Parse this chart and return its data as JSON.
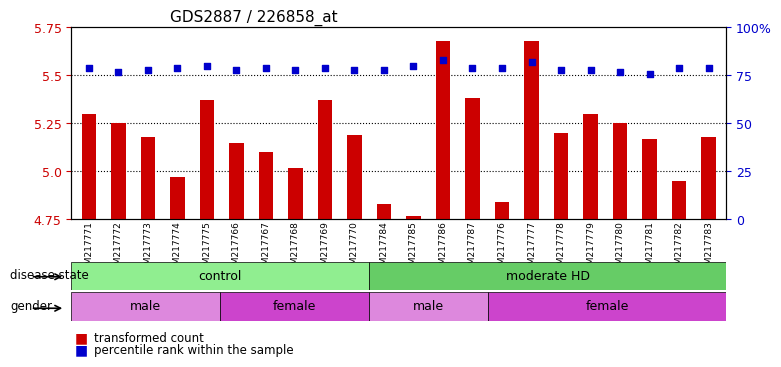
{
  "title": "GDS2887 / 226858_at",
  "samples": [
    "GSM217771",
    "GSM217772",
    "GSM217773",
    "GSM217774",
    "GSM217775",
    "GSM217766",
    "GSM217767",
    "GSM217768",
    "GSM217769",
    "GSM217770",
    "GSM217784",
    "GSM217785",
    "GSM217786",
    "GSM217787",
    "GSM217776",
    "GSM217777",
    "GSM217778",
    "GSM217779",
    "GSM217780",
    "GSM217781",
    "GSM217782",
    "GSM217783"
  ],
  "red_values": [
    5.3,
    5.25,
    5.18,
    4.97,
    5.37,
    5.15,
    5.1,
    5.02,
    5.37,
    5.19,
    4.83,
    4.77,
    5.68,
    5.38,
    4.84,
    5.68,
    5.2,
    5.3,
    5.25,
    5.17,
    4.95,
    5.18
  ],
  "blue_values": [
    79,
    77,
    78,
    79,
    80,
    78,
    79,
    78,
    79,
    78,
    78,
    80,
    83,
    79,
    79,
    82,
    78,
    78,
    77,
    76,
    79,
    79
  ],
  "ylim_left": [
    4.75,
    5.75
  ],
  "ylim_right": [
    0,
    100
  ],
  "yticks_left": [
    4.75,
    5.0,
    5.25,
    5.5,
    5.75
  ],
  "yticks_right": [
    0,
    25,
    50,
    75,
    100
  ],
  "hlines": [
    5.0,
    5.25,
    5.5
  ],
  "bar_color": "#cc0000",
  "dot_color": "#0000cc",
  "disease_state_groups": [
    {
      "label": "control",
      "start": 0,
      "end": 10,
      "color": "#90ee90"
    },
    {
      "label": "moderate HD",
      "start": 10,
      "end": 22,
      "color": "#66cc66"
    }
  ],
  "gender_groups": [
    {
      "label": "male",
      "start": 0,
      "end": 5,
      "color": "#dd88dd"
    },
    {
      "label": "female",
      "start": 5,
      "end": 10,
      "color": "#cc44cc"
    },
    {
      "label": "male",
      "start": 10,
      "end": 14,
      "color": "#dd88dd"
    },
    {
      "label": "female",
      "start": 14,
      "end": 22,
      "color": "#cc44cc"
    }
  ],
  "legend_items": [
    {
      "label": "transformed count",
      "color": "#cc0000",
      "marker": "s"
    },
    {
      "label": "percentile rank within the sample",
      "color": "#0000cc",
      "marker": "s"
    }
  ],
  "bar_width": 0.5,
  "xlabel_fontsize": 7,
  "title_fontsize": 11,
  "tick_fontsize": 9,
  "annot_fontsize": 9
}
